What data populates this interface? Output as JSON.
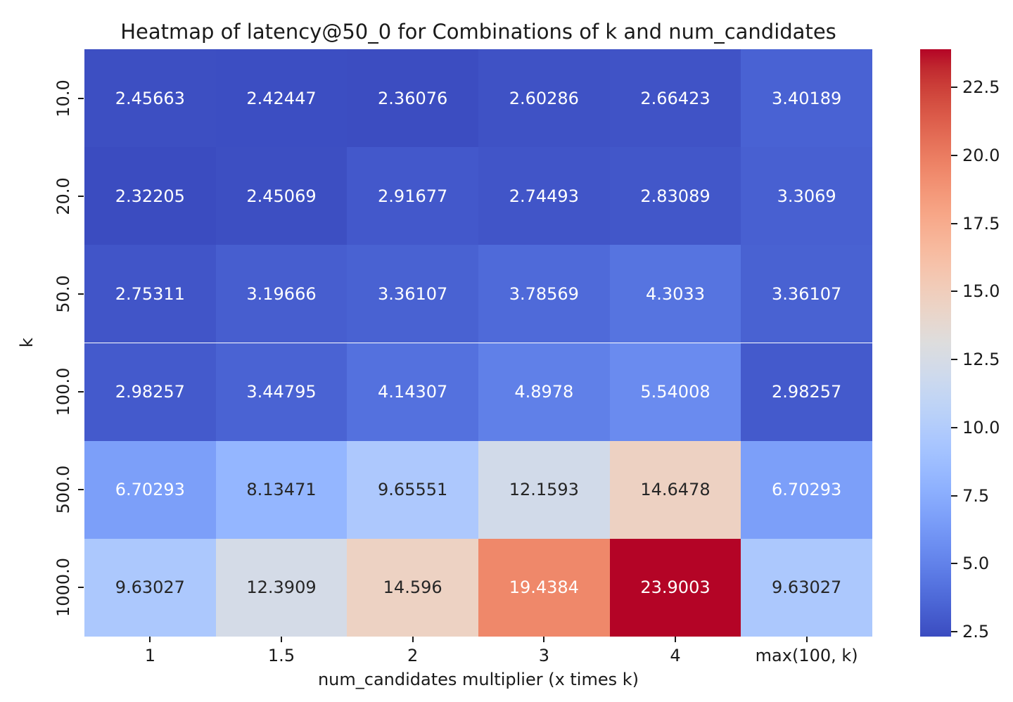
{
  "chart_data": {
    "type": "heatmap",
    "title": "Heatmap of latency@50_0 for Combinations of k and num_candidates",
    "xlabel": "num_candidates multiplier (x times k)",
    "ylabel": "k",
    "x_categories": [
      "1",
      "1.5",
      "2",
      "3",
      "4",
      "max(100, k)"
    ],
    "y_categories": [
      "10.0",
      "20.0",
      "50.0",
      "100.0",
      "500.0",
      "1000.0"
    ],
    "cell_labels": [
      [
        "2.45663",
        "2.42447",
        "2.36076",
        "2.60286",
        "2.66423",
        "3.40189"
      ],
      [
        "2.32205",
        "2.45069",
        "2.91677",
        "2.74493",
        "2.83089",
        "3.3069"
      ],
      [
        "2.75311",
        "3.19666",
        "3.36107",
        "3.78569",
        "4.3033",
        "3.36107"
      ],
      [
        "2.98257",
        "3.44795",
        "4.14307",
        "4.8978",
        "5.54008",
        "2.98257"
      ],
      [
        "6.70293",
        "8.13471",
        "9.65551",
        "12.1593",
        "14.6478",
        "6.70293"
      ],
      [
        "9.63027",
        "12.3909",
        "14.596",
        "19.4384",
        "23.9003",
        "9.63027"
      ]
    ],
    "values": [
      [
        2.45663,
        2.42447,
        2.36076,
        2.60286,
        2.66423,
        3.40189
      ],
      [
        2.32205,
        2.45069,
        2.91677,
        2.74493,
        2.83089,
        3.3069
      ],
      [
        2.75311,
        3.19666,
        3.36107,
        3.78569,
        4.3033,
        3.36107
      ],
      [
        2.98257,
        3.44795,
        4.14307,
        4.8978,
        5.54008,
        2.98257
      ],
      [
        6.70293,
        8.13471,
        9.65551,
        12.1593,
        14.6478,
        6.70293
      ],
      [
        9.63027,
        12.3909,
        14.596,
        19.4384,
        23.9003,
        9.63027
      ]
    ],
    "colormap": "coolwarm",
    "vmin": 2.32205,
    "vmax": 23.9003,
    "grid": false,
    "legend_position": "right-colorbar",
    "colorbar": {
      "tick_labels": [
        "2.5",
        "5.0",
        "7.5",
        "10.0",
        "12.5",
        "15.0",
        "17.5",
        "20.0",
        "22.5"
      ],
      "tick_values": [
        2.5,
        5.0,
        7.5,
        10.0,
        12.5,
        15.0,
        17.5,
        20.0,
        22.5
      ]
    },
    "colors": {
      "background": "#ffffff",
      "axis_text": "#1a1a1a",
      "annotation_light": "#ffffff",
      "annotation_dark": "#262626",
      "colormap_low": "#3b4cc0",
      "colormap_mid": "#dddddd",
      "colormap_high": "#b40426"
    }
  }
}
